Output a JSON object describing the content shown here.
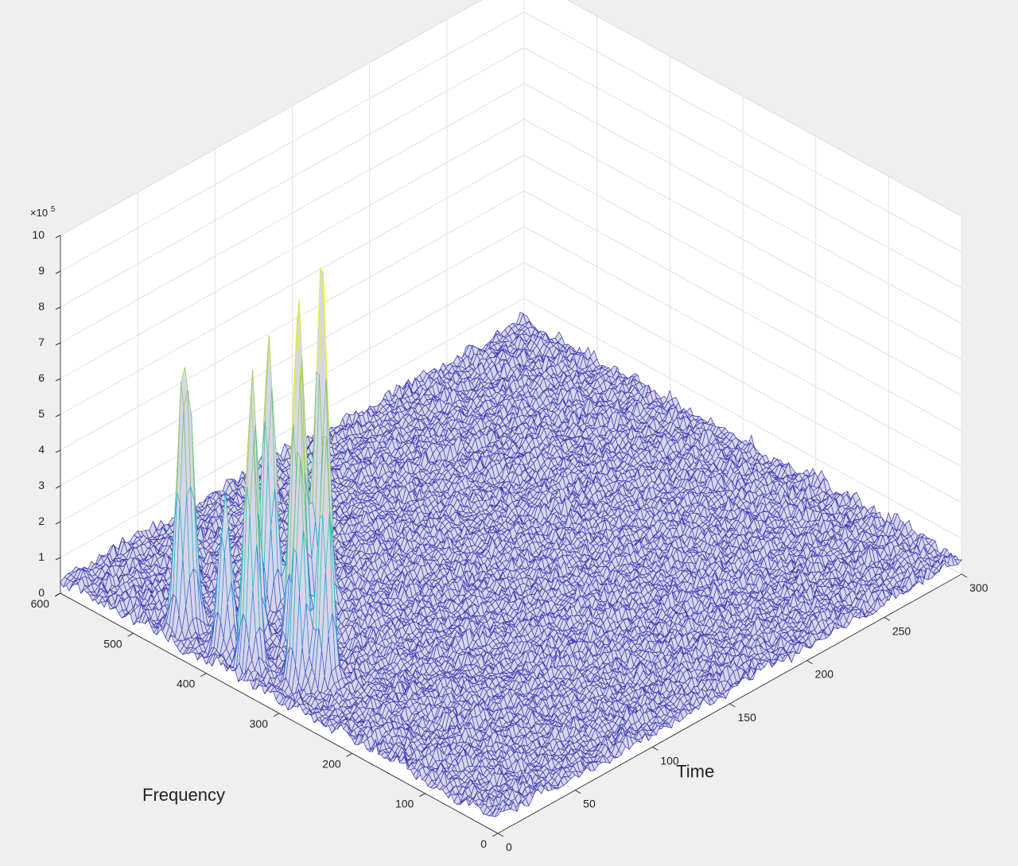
{
  "chart_data": {
    "type": "surface",
    "xlabel": "Time",
    "ylabel": "Frequency",
    "zlabel": "",
    "x_ticks": [
      0,
      50,
      100,
      150,
      200,
      250,
      300
    ],
    "y_ticks": [
      0,
      100,
      200,
      300,
      400,
      500,
      600
    ],
    "z_ticks": [
      0,
      1,
      2,
      3,
      4,
      5,
      6,
      7,
      8,
      9,
      10
    ],
    "z_multiplier_label": "×10",
    "z_multiplier_exponent": "5",
    "xlim": [
      0,
      300
    ],
    "ylim": [
      0,
      600
    ],
    "zlim": [
      0,
      10
    ],
    "z_units": "x10^5",
    "grid": true,
    "colormap": "parula",
    "noise_floor": 0.7,
    "peaks": [
      {
        "time": 10,
        "frequency": 360,
        "height": 7.5
      },
      {
        "time": 12,
        "frequency": 400,
        "height": 4.3
      },
      {
        "time": 10,
        "frequency": 455,
        "height": 5.7
      },
      {
        "time": 15,
        "frequency": 455,
        "height": 5.1
      },
      {
        "time": 18,
        "frequency": 310,
        "height": 6.9
      },
      {
        "time": 25,
        "frequency": 290,
        "height": 7.2
      },
      {
        "time": 40,
        "frequency": 360,
        "height": 9.0
      },
      {
        "time": 70,
        "frequency": 390,
        "height": 9.8
      },
      {
        "time": 60,
        "frequency": 400,
        "height": 8.6
      },
      {
        "time": 50,
        "frequency": 420,
        "height": 7.7
      },
      {
        "time": 30,
        "frequency": 400,
        "height": 7.3
      }
    ]
  }
}
